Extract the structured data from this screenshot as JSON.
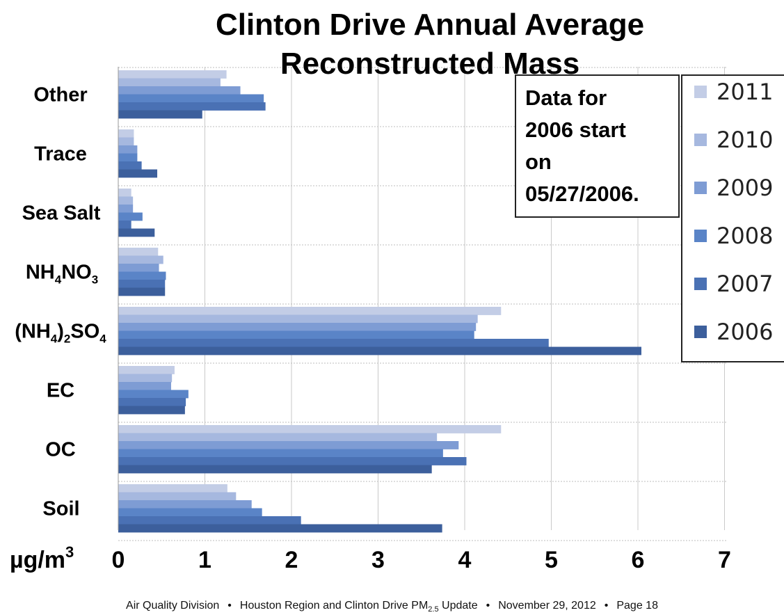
{
  "chart_data": {
    "type": "bar",
    "orientation": "horizontal",
    "title": [
      "Clinton Drive Annual Average",
      "Reconstructed Mass"
    ],
    "unit_label": "µg/m",
    "unit_superscript": "3",
    "categories": [
      {
        "pre": "Other"
      },
      {
        "pre": "Trace"
      },
      {
        "pre": "Sea Salt"
      },
      {
        "pre": "NH",
        "sub1": "4",
        "mid": "NO",
        "sub2": "3"
      },
      {
        "pre": "(NH",
        "sub1": "4",
        "mid": ")",
        "sub2": "2",
        "mid2": "SO",
        "sub3": "4"
      },
      {
        "pre": "EC"
      },
      {
        "pre": "OC"
      },
      {
        "pre": "Soil"
      }
    ],
    "series": [
      {
        "name": "2011",
        "color": "#c3cde6",
        "values": [
          1.25,
          0.18,
          0.15,
          0.46,
          4.42,
          0.65,
          4.42,
          1.26
        ]
      },
      {
        "name": "2010",
        "color": "#a6b8df",
        "values": [
          1.18,
          0.18,
          0.17,
          0.52,
          4.15,
          0.62,
          3.68,
          1.36
        ]
      },
      {
        "name": "2009",
        "color": "#7e9cd4",
        "values": [
          1.41,
          0.22,
          0.17,
          0.47,
          4.13,
          0.61,
          3.93,
          1.54
        ]
      },
      {
        "name": "2008",
        "color": "#5a84c7",
        "values": [
          1.68,
          0.22,
          0.28,
          0.55,
          4.11,
          0.81,
          3.75,
          1.66
        ]
      },
      {
        "name": "2007",
        "color": "#4a71b4",
        "values": [
          1.7,
          0.27,
          0.15,
          0.54,
          4.97,
          0.78,
          4.02,
          2.11
        ]
      },
      {
        "name": "2006",
        "color": "#3c5f9c",
        "values": [
          0.97,
          0.45,
          0.42,
          0.54,
          6.04,
          0.77,
          3.62,
          3.74
        ]
      }
    ],
    "x_ticks": [
      "0",
      "1",
      "2",
      "3",
      "4",
      "5",
      "6",
      "7"
    ],
    "xlim": [
      0,
      7
    ],
    "grid": true,
    "legend_position": "right",
    "annotation": [
      "Data for",
      "2006 start",
      "on",
      "05/27/2006."
    ]
  },
  "footer": {
    "left": "Air Quality Division",
    "middle_pre": "Houston Region and Clinton Drive PM",
    "middle_sub": "2.5",
    "middle_post": " Update",
    "date": "November 29,  2012",
    "page": "Page  18",
    "separator": "•"
  }
}
